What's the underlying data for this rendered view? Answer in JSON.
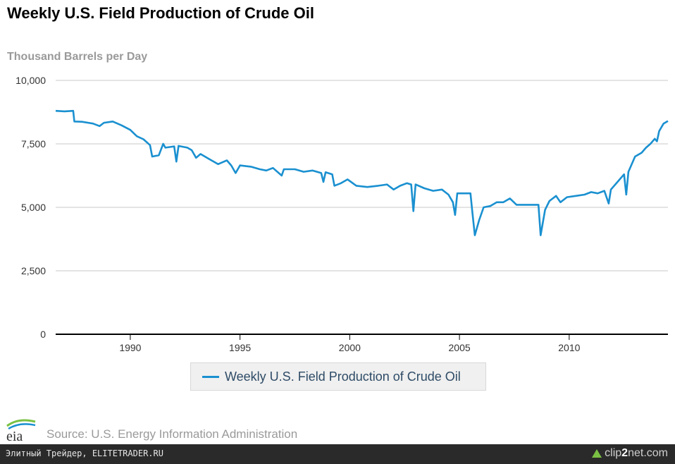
{
  "chart_data": {
    "type": "line",
    "title": "Weekly U.S. Field Production of Crude Oil",
    "ylabel": "Thousand Barrels per Day",
    "ylim": [
      0,
      10000
    ],
    "yticks": [
      0,
      2500,
      5000,
      7500,
      10000
    ],
    "ytick_labels": [
      "0",
      "2,500",
      "5,000",
      "7,500",
      "10,000"
    ],
    "xlim": [
      1986.6,
      2014.5
    ],
    "xticks": [
      1990,
      1995,
      2000,
      2005,
      2010
    ],
    "xtick_labels": [
      "1990",
      "1995",
      "2000",
      "2005",
      "2010"
    ],
    "grid": "horizontal",
    "legend_position": "bottom-center",
    "series": [
      {
        "name": "Weekly U.S. Field Production of Crude Oil",
        "color": "#1a90d0",
        "points": [
          [
            1986.6,
            8800
          ],
          [
            1987.0,
            8780
          ],
          [
            1987.4,
            8800
          ],
          [
            1987.45,
            8380
          ],
          [
            1987.8,
            8370
          ],
          [
            1988.3,
            8300
          ],
          [
            1988.6,
            8200
          ],
          [
            1988.8,
            8330
          ],
          [
            1989.2,
            8380
          ],
          [
            1989.6,
            8230
          ],
          [
            1990.0,
            8050
          ],
          [
            1990.3,
            7800
          ],
          [
            1990.6,
            7680
          ],
          [
            1990.9,
            7450
          ],
          [
            1991.0,
            7000
          ],
          [
            1991.3,
            7050
          ],
          [
            1991.5,
            7500
          ],
          [
            1991.6,
            7350
          ],
          [
            1992.0,
            7400
          ],
          [
            1992.1,
            6800
          ],
          [
            1992.2,
            7420
          ],
          [
            1992.6,
            7350
          ],
          [
            1992.8,
            7250
          ],
          [
            1993.0,
            6950
          ],
          [
            1993.2,
            7100
          ],
          [
            1993.6,
            6900
          ],
          [
            1994.0,
            6700
          ],
          [
            1994.4,
            6850
          ],
          [
            1994.6,
            6650
          ],
          [
            1994.8,
            6350
          ],
          [
            1995.0,
            6650
          ],
          [
            1995.5,
            6600
          ],
          [
            1995.9,
            6500
          ],
          [
            1996.2,
            6450
          ],
          [
            1996.5,
            6550
          ],
          [
            1996.9,
            6250
          ],
          [
            1997.0,
            6500
          ],
          [
            1997.5,
            6500
          ],
          [
            1997.9,
            6400
          ],
          [
            1998.3,
            6450
          ],
          [
            1998.7,
            6350
          ],
          [
            1998.8,
            6000
          ],
          [
            1998.9,
            6380
          ],
          [
            1999.2,
            6300
          ],
          [
            1999.3,
            5850
          ],
          [
            1999.6,
            5950
          ],
          [
            1999.9,
            6100
          ],
          [
            2000.3,
            5850
          ],
          [
            2000.8,
            5800
          ],
          [
            2001.3,
            5850
          ],
          [
            2001.7,
            5900
          ],
          [
            2002.0,
            5700
          ],
          [
            2002.3,
            5850
          ],
          [
            2002.6,
            5950
          ],
          [
            2002.8,
            5900
          ],
          [
            2002.9,
            4850
          ],
          [
            2003.0,
            5900
          ],
          [
            2003.4,
            5750
          ],
          [
            2003.8,
            5650
          ],
          [
            2004.2,
            5700
          ],
          [
            2004.5,
            5500
          ],
          [
            2004.7,
            5200
          ],
          [
            2004.8,
            4700
          ],
          [
            2004.9,
            5550
          ],
          [
            2005.2,
            5550
          ],
          [
            2005.5,
            5550
          ],
          [
            2005.6,
            4700
          ],
          [
            2005.7,
            3900
          ],
          [
            2005.9,
            4500
          ],
          [
            2006.1,
            5000
          ],
          [
            2006.4,
            5050
          ],
          [
            2006.7,
            5200
          ],
          [
            2007.0,
            5200
          ],
          [
            2007.3,
            5350
          ],
          [
            2007.6,
            5100
          ],
          [
            2008.0,
            5100
          ],
          [
            2008.3,
            5100
          ],
          [
            2008.6,
            5100
          ],
          [
            2008.7,
            3900
          ],
          [
            2008.9,
            4900
          ],
          [
            2009.1,
            5250
          ],
          [
            2009.4,
            5450
          ],
          [
            2009.6,
            5200
          ],
          [
            2009.9,
            5400
          ],
          [
            2010.3,
            5450
          ],
          [
            2010.7,
            5500
          ],
          [
            2011.0,
            5600
          ],
          [
            2011.3,
            5550
          ],
          [
            2011.6,
            5650
          ],
          [
            2011.8,
            5150
          ],
          [
            2011.9,
            5700
          ],
          [
            2012.2,
            6000
          ],
          [
            2012.5,
            6300
          ],
          [
            2012.6,
            5500
          ],
          [
            2012.7,
            6400
          ],
          [
            2013.0,
            7000
          ],
          [
            2013.3,
            7150
          ],
          [
            2013.5,
            7350
          ],
          [
            2013.7,
            7500
          ],
          [
            2013.9,
            7700
          ],
          [
            2014.0,
            7600
          ],
          [
            2014.1,
            8000
          ],
          [
            2014.3,
            8300
          ],
          [
            2014.5,
            8400
          ]
        ]
      }
    ]
  },
  "source": "Source: U.S. Energy Information Administration",
  "logo_icon": "eia-logo-icon",
  "footer": {
    "left_text": "Элитный Трейдер, ELITETRADER.RU",
    "brand_prefix": "clip",
    "brand_highlight": "2",
    "brand_suffix": "net.com"
  }
}
